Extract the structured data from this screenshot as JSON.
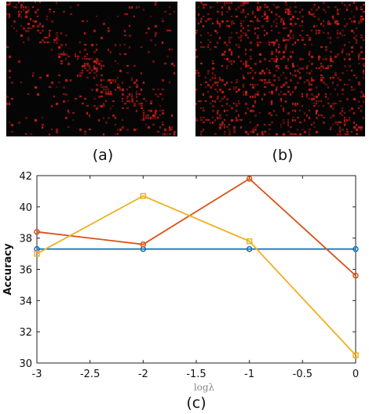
{
  "panels": {
    "a_label": "(a)",
    "b_label": "(b)",
    "c_label": "(c)"
  },
  "heatmaps": {
    "a": {
      "style": "block-diagonal",
      "background": "#050505",
      "accent": "#e0201a"
    },
    "b": {
      "style": "diffuse",
      "background": "#050505",
      "accent": "#e0201a"
    }
  },
  "chart_data": {
    "type": "line",
    "title": "",
    "xlabel": "logλ",
    "ylabel": "Accuracy",
    "xlim": [
      -3,
      0
    ],
    "ylim": [
      30,
      42
    ],
    "xticks": [
      -3,
      -2.5,
      -2,
      -1.5,
      -1,
      -0.5,
      0
    ],
    "xtick_labels": [
      "-3",
      "-2.5",
      "-2",
      "-1.5",
      "-1",
      "-0.5",
      "0"
    ],
    "yticks": [
      30,
      32,
      34,
      36,
      38,
      40,
      42
    ],
    "ytick_labels": [
      "30",
      "32",
      "34",
      "36",
      "38",
      "40",
      "42"
    ],
    "grid": false,
    "series": [
      {
        "color": "#0072bd",
        "marker": "circle",
        "x": [
          -3,
          -2,
          -1,
          0
        ],
        "y": [
          37.3,
          37.3,
          37.3,
          37.3
        ]
      },
      {
        "color": "#d95319",
        "marker": "circle",
        "x": [
          -3,
          -2,
          -1,
          0
        ],
        "y": [
          38.4,
          37.6,
          41.8,
          35.6
        ]
      },
      {
        "color": "#edb120",
        "marker": "square",
        "x": [
          -3,
          -2,
          -1,
          0
        ],
        "y": [
          37.0,
          40.7,
          37.8,
          30.5
        ]
      }
    ]
  }
}
